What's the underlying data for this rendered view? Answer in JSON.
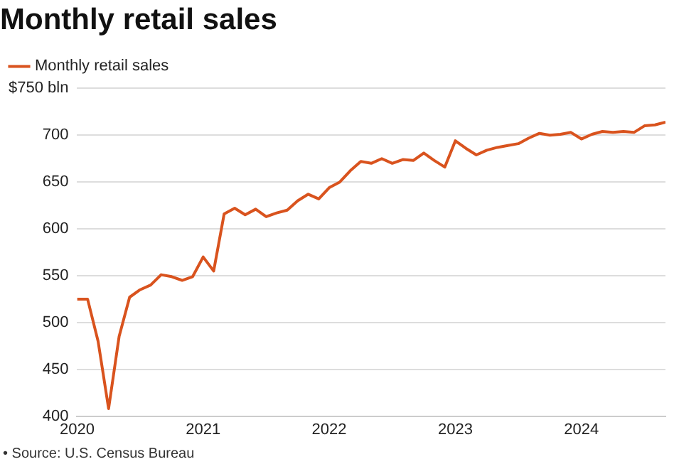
{
  "chart_data": {
    "type": "line",
    "title": "Monthly retail sales",
    "x": [
      "2020-01",
      "2020-02",
      "2020-03",
      "2020-04",
      "2020-05",
      "2020-06",
      "2020-07",
      "2020-08",
      "2020-09",
      "2020-10",
      "2020-11",
      "2020-12",
      "2021-01",
      "2021-02",
      "2021-03",
      "2021-04",
      "2021-05",
      "2021-06",
      "2021-07",
      "2021-08",
      "2021-09",
      "2021-10",
      "2021-11",
      "2021-12",
      "2022-01",
      "2022-02",
      "2022-03",
      "2022-04",
      "2022-05",
      "2022-06",
      "2022-07",
      "2022-08",
      "2022-09",
      "2022-10",
      "2022-11",
      "2022-12",
      "2023-01",
      "2023-02",
      "2023-03",
      "2023-04",
      "2023-05",
      "2023-06",
      "2023-07",
      "2023-08",
      "2023-09",
      "2023-10",
      "2023-11",
      "2023-12",
      "2024-01",
      "2024-02",
      "2024-03",
      "2024-04",
      "2024-05",
      "2024-06",
      "2024-07",
      "2024-08",
      "2024-09"
    ],
    "series": [
      {
        "name": "Monthly retail sales",
        "color": "#d9531e",
        "values": [
          525,
          525,
          480,
          408,
          485,
          527,
          535,
          540,
          551,
          549,
          545,
          549,
          570,
          555,
          616,
          622,
          615,
          621,
          613,
          617,
          620,
          630,
          637,
          632,
          644,
          650,
          662,
          672,
          670,
          675,
          670,
          674,
          673,
          681,
          673,
          666,
          694,
          686,
          679,
          684,
          687,
          689,
          691,
          697,
          702,
          700,
          701,
          703,
          696,
          701,
          704,
          703,
          704,
          703,
          710,
          711,
          714
        ]
      }
    ],
    "xlim": [
      "2020-01",
      "2024-09"
    ],
    "xticks": [
      "2020",
      "2021",
      "2022",
      "2023",
      "2024"
    ],
    "ylim": [
      400,
      750
    ],
    "yticks": [
      400,
      450,
      500,
      550,
      600,
      650,
      700,
      {
        "value": 750,
        "label": "$750 bln"
      }
    ],
    "grid": "y",
    "legend": "top left",
    "marker": "none",
    "line_style": "solid",
    "annotations": [
      "• Source: U.S. Census Bureau"
    ]
  }
}
